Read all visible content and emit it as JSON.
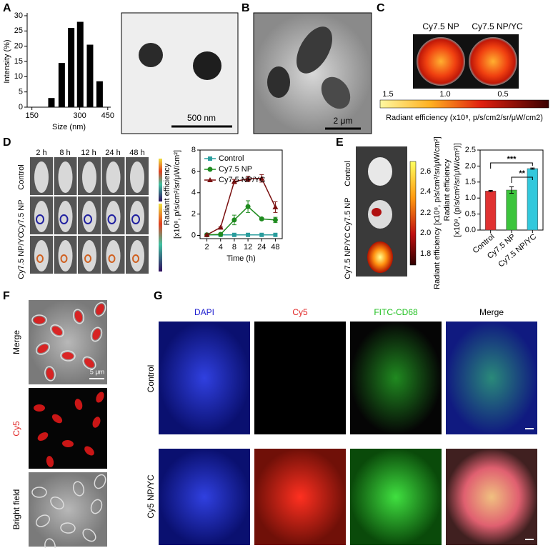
{
  "chart_data": [
    {
      "type": "bar",
      "xlabel": "Size (nm)",
      "ylabel": "Intensity (%)",
      "x": [
        199,
        231,
        265,
        302,
        348,
        400
      ],
      "values": [
        3,
        14.5,
        26,
        28,
        20.5,
        8.5
      ],
      "color": "#000000",
      "xscale": "log",
      "xlim": [
        140,
        470
      ],
      "xticks": [
        150,
        300,
        450
      ],
      "ylim": [
        0,
        30
      ],
      "yticks": [
        0,
        5,
        10,
        15,
        20,
        25,
        30
      ]
    },
    {
      "type": "line",
      "xlabel": "Time (h)",
      "ylabel": [
        "Radiant efficiency",
        "[x10⁸, p/s/cm²/sr/μW/cm²]"
      ],
      "categories": [
        "2",
        "4",
        "8",
        "12",
        "24",
        "48"
      ],
      "series": [
        {
          "name": "Control",
          "color": "#2a9d9d",
          "marker": "square",
          "values": [
            0.05,
            0.05,
            0.05,
            0.05,
            0.05,
            0.05
          ]
        },
        {
          "name": "Cy7.5 NP",
          "color": "#1e8a1e",
          "marker": "circle",
          "values": [
            0.05,
            0.1,
            1.45,
            2.7,
            1.55,
            1.45
          ],
          "errors": [
            0.05,
            0.05,
            0.45,
            0.55,
            0.1,
            0.25
          ]
        },
        {
          "name": "Cy7.5 NP/YC",
          "color": "#7a1010",
          "marker": "triangle",
          "values": [
            0.05,
            0.75,
            5.05,
            5.3,
            5.35,
            2.65
          ],
          "errors": [
            0.05,
            0.05,
            0.2,
            0.25,
            0.35,
            0.5
          ]
        }
      ],
      "ylim": [
        -0.3,
        8
      ],
      "yticks": [
        0,
        2,
        4,
        6,
        8
      ],
      "legend": "top-left"
    },
    {
      "type": "bar",
      "ylabel": [
        "Radiant efficiency",
        "[x10⁸, (p/s/cm²/sr/μW/cm²)]"
      ],
      "categories": [
        "Control",
        "Cy7.5 NP",
        "Cy7.5 NP/YC"
      ],
      "values": [
        1.22,
        1.25,
        1.92
      ],
      "errors": [
        0.02,
        0.1,
        0.02
      ],
      "colors": [
        "#e03232",
        "#3cc43c",
        "#32c8dc"
      ],
      "ylim": [
        0,
        2.5
      ],
      "yticks": [
        {
          "value": 0,
          "label": "0.0"
        },
        {
          "value": 0.5,
          "label": "0.5"
        },
        {
          "value": 1,
          "label": "1.0"
        },
        {
          "value": 1.5,
          "label": "1.5"
        },
        {
          "value": 2,
          "label": "2.0"
        },
        {
          "value": 2.5,
          "label": "2.5"
        }
      ],
      "annotations": [
        "***",
        "**"
      ]
    }
  ],
  "figure": {
    "panel_labels": [
      "A",
      "B",
      "C",
      "D",
      "E",
      "F",
      "G"
    ],
    "scale_bars": [
      "500 nm",
      "2 μm",
      "5 μm"
    ],
    "panel_c": {
      "labels": [
        "Cy7.5 NP",
        "Cy7.5 NP/YC"
      ],
      "colorbar_ticks": [
        "1.5",
        "1.0",
        "0.5"
      ],
      "colorbar_label": "Radiant efficiency (x10⁸, p/s/cm2/sr/μW/cm2)"
    },
    "panel_d": {
      "times": [
        "2 h",
        "8 h",
        "12 h",
        "24 h",
        "48 h"
      ],
      "rows": [
        "Control",
        "Cy7.5 NP",
        "Cy7.5 NP/YC"
      ]
    },
    "panel_e": {
      "rows": [
        "Control",
        "Cy7.5 NP",
        "Cy7.5 NP/YC"
      ],
      "colorbar_ticks": [
        "2.6",
        "2.4",
        "2.2",
        "2.0",
        "1.8"
      ],
      "colorbar_label": "Radiant efficiency [x10⁸, p/s/cm²/sr/μW/cm²]"
    },
    "panel_f": {
      "rows": [
        "Merge",
        "Cy5",
        "Bright field"
      ]
    },
    "panel_g": {
      "columns": [
        "DAPI",
        "Cy5",
        "FITC-CD68",
        "Merge"
      ],
      "rows": [
        "Control",
        "Cy5 NP/YC"
      ]
    }
  }
}
